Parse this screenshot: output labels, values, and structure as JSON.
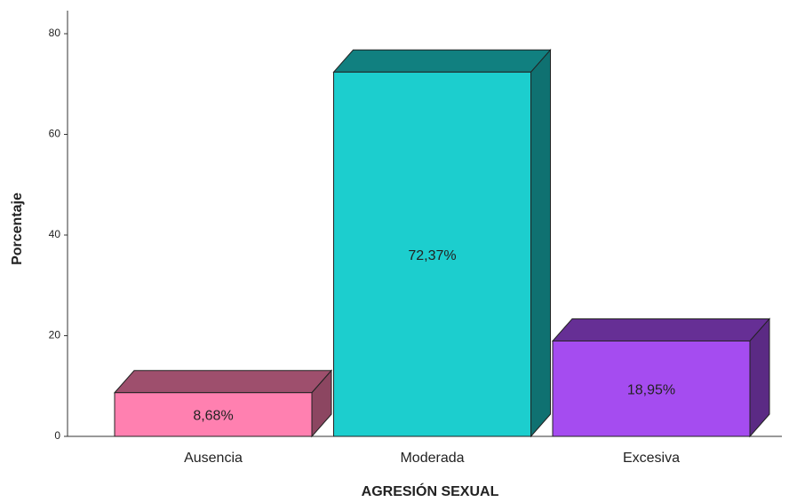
{
  "chart_data": {
    "type": "bar3d",
    "x_label": "AGRESIÓN SEXUAL",
    "y_label": "Porcentaje",
    "categories": [
      "Ausencia",
      "Moderada",
      "Excesiva"
    ],
    "values": [
      8.68,
      72.37,
      18.95
    ],
    "value_labels": [
      "8,68%",
      "72,37%",
      "18,95%"
    ],
    "colors": [
      "#ff80b0",
      "#1ccece",
      "#a54cf0"
    ],
    "ylim": [
      0,
      80
    ],
    "yticks": [
      0,
      20,
      40,
      60,
      80
    ],
    "grid": false
  }
}
